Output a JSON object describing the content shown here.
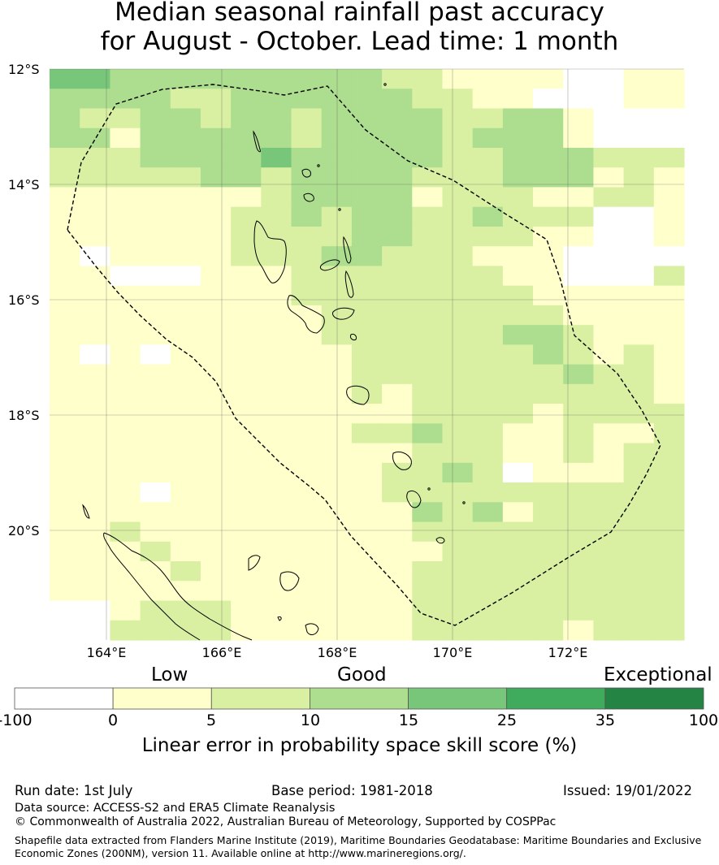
{
  "title_line1": "Median seasonal rainfall past accuracy",
  "title_line2": "for August - October. Lead time: 1 month",
  "map": {
    "lat_labels": [
      "12°S",
      "14°S",
      "16°S",
      "18°S",
      "20°S"
    ],
    "lon_labels": [
      "164°E",
      "166°E",
      "168°E",
      "170°E",
      "172°E"
    ],
    "grid_rows": [
      "443333333332211110011",
      "333322333333221100011",
      "322332332333322331000",
      "331333332333323331000",
      "222333343333322333222",
      "222223323333222333121",
      "111111123333122211221",
      "111111223233223222001",
      "111111222233222211001",
      "101111222332221110000",
      "110001112222222110002",
      "111111112222222211111",
      "111111111222222221111",
      "111111111222222332111",
      "101011111122222232121",
      "111111111122222223221",
      "111111111121222222221",
      "111111111111222212222",
      "111111111122322112112",
      "111111111111222112122",
      "111111111112232011122",
      "111011111112222222222",
      "111111111111323122222",
      "112111111111222222222",
      "111211111111122222222",
      "111121111111222222222",
      "111111111111222222222",
      "001222111111222222222",
      "002222111111222221222"
    ]
  },
  "colorbar": {
    "categories": [
      "Low",
      "Good",
      "Exceptional"
    ],
    "ticks": [
      "-100",
      "0",
      "5",
      "10",
      "15",
      "25",
      "35",
      "100"
    ],
    "colors": [
      "#ffffff",
      "#ffffcc",
      "#d9f0a3",
      "#addd8e",
      "#78c679",
      "#41ab5d",
      "#238443"
    ],
    "label": "Linear error in probability space skill score (%)"
  },
  "footer": {
    "run_date": "Run date: 1st July",
    "base_period": "Base period: 1981-2018",
    "issued": "Issued: 19/01/2022",
    "data_source": "Data source: ACCESS-S2 and ERA5 Climate Reanalysis",
    "copyright": "© Commonwealth of Australia 2022, Australian Bureau of Meteorology, Supported by COSPPac",
    "shapefile_line1": "Shapefile data extracted from Flanders Marine Institute (2019), Maritime Boundaries Geodatabase: Maritime Boundaries and Exclusive",
    "shapefile_line2": "Economic Zones (200NM), version 11. Available online at http://www.marineregions.org/."
  }
}
